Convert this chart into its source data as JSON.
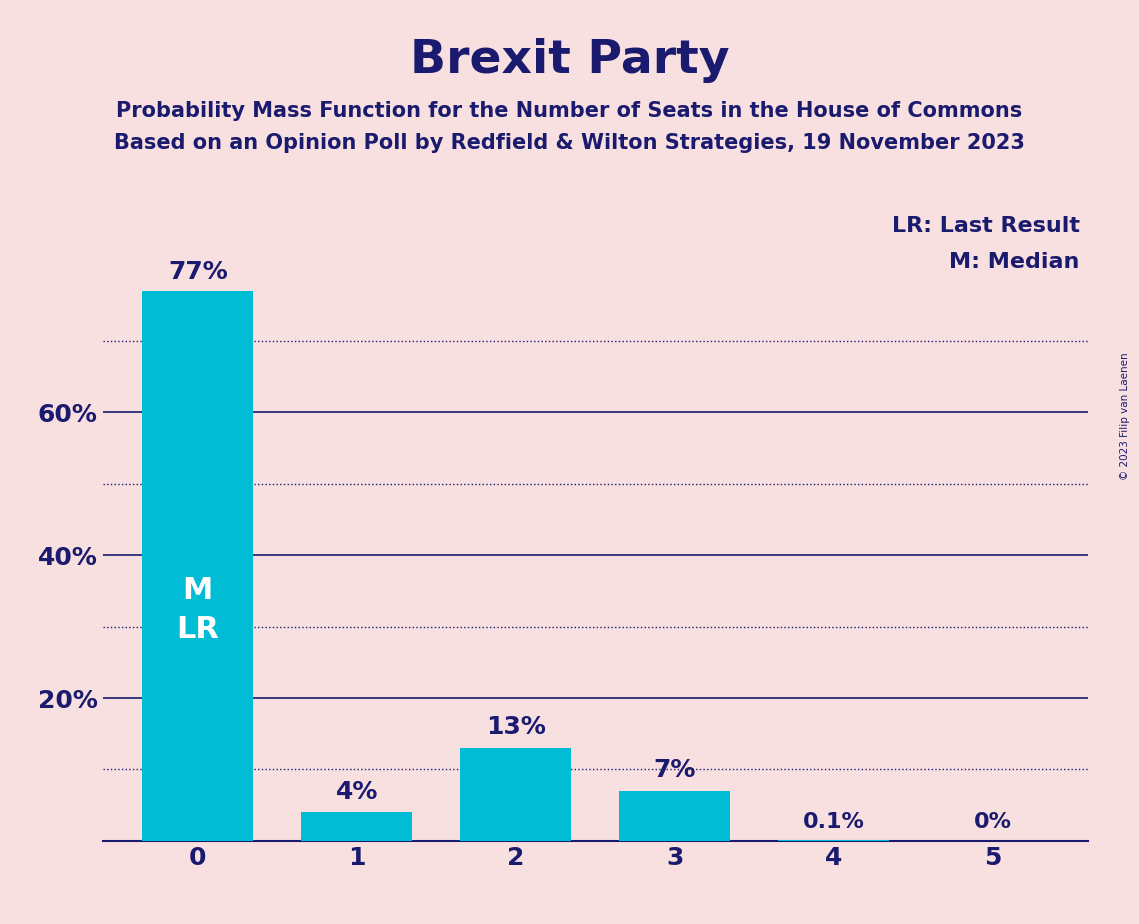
{
  "title": "Brexit Party",
  "subtitle1": "Probability Mass Function for the Number of Seats in the House of Commons",
  "subtitle2": "Based on an Opinion Poll by Redfield & Wilton Strategies, 19 November 2023",
  "categories": [
    0,
    1,
    2,
    3,
    4,
    5
  ],
  "values": [
    0.77,
    0.04,
    0.13,
    0.07,
    0.001,
    0.0
  ],
  "bar_labels": [
    "77%",
    "4%",
    "13%",
    "7%",
    "0.1%",
    "0%"
  ],
  "bar_color": "#00BCD4",
  "background_color": "#F9E0E0",
  "title_color": "#1a1a6e",
  "axis_color": "#1a1a6e",
  "bar_label_color_outside": "#1a1a6e",
  "bar_label_color_inside": "#ffffff",
  "solid_grid_values": [
    0.2,
    0.4,
    0.6
  ],
  "dotted_grid_values": [
    0.1,
    0.3,
    0.5,
    0.7
  ],
  "ytick_labels": [
    "20%",
    "40%",
    "60%"
  ],
  "ytick_values": [
    0.2,
    0.4,
    0.6
  ],
  "legend_text1": "LR: Last Result",
  "legend_text2": "M: Median",
  "inside_bar_label": "M\nLR",
  "copyright_text": "© 2023 Filip van Laenen",
  "ylim": [
    0,
    0.88
  ]
}
